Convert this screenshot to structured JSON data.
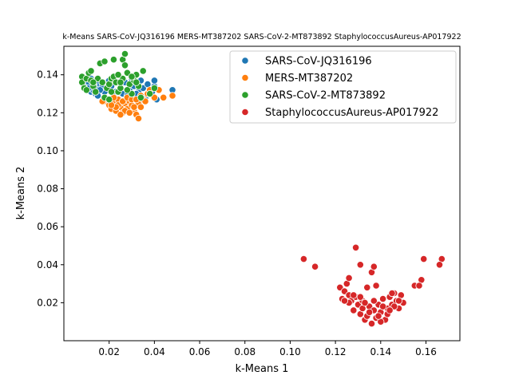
{
  "chart_data": {
    "type": "scatter",
    "title": "k-Means SARS-CoV-JQ316196 MERS-MT387202 SARS-CoV-2-MT873892 StaphylococcusAureus-AP017922",
    "xlabel": "k-Means 1",
    "ylabel": "k-Means 2",
    "xlim": [
      0.0,
      0.175
    ],
    "ylim": [
      0.0,
      0.155
    ],
    "xticks": [
      0.02,
      0.04,
      0.06,
      0.08,
      0.1,
      0.12,
      0.14,
      0.16
    ],
    "yticks": [
      0.02,
      0.04,
      0.06,
      0.08,
      0.1,
      0.12,
      0.14
    ],
    "grid": false,
    "legend_position": "top-right",
    "series": [
      {
        "name": "SARS-CoV-JQ316196",
        "color": "#1f77b4",
        "points": [
          [
            0.01,
            0.134
          ],
          [
            0.012,
            0.131
          ],
          [
            0.014,
            0.133
          ],
          [
            0.016,
            0.135
          ],
          [
            0.011,
            0.136
          ],
          [
            0.013,
            0.132
          ],
          [
            0.015,
            0.137
          ],
          [
            0.017,
            0.134
          ],
          [
            0.018,
            0.131
          ],
          [
            0.02,
            0.133
          ],
          [
            0.012,
            0.138
          ],
          [
            0.014,
            0.13
          ],
          [
            0.016,
            0.132
          ],
          [
            0.019,
            0.136
          ],
          [
            0.021,
            0.134
          ],
          [
            0.023,
            0.131
          ],
          [
            0.025,
            0.133
          ],
          [
            0.027,
            0.136
          ],
          [
            0.029,
            0.132
          ],
          [
            0.031,
            0.134
          ],
          [
            0.033,
            0.131
          ],
          [
            0.035,
            0.133
          ],
          [
            0.037,
            0.135
          ],
          [
            0.04,
            0.134
          ],
          [
            0.041,
            0.127
          ],
          [
            0.048,
            0.132
          ],
          [
            0.034,
            0.137
          ],
          [
            0.03,
            0.138
          ],
          [
            0.026,
            0.13
          ],
          [
            0.022,
            0.129
          ],
          [
            0.018,
            0.127
          ],
          [
            0.015,
            0.129
          ],
          [
            0.013,
            0.134
          ],
          [
            0.024,
            0.136
          ],
          [
            0.028,
            0.129
          ],
          [
            0.032,
            0.13
          ],
          [
            0.036,
            0.128
          ],
          [
            0.039,
            0.131
          ],
          [
            0.011,
            0.133
          ],
          [
            0.02,
            0.137
          ],
          [
            0.04,
            0.137
          ]
        ]
      },
      {
        "name": "MERS-MT387202",
        "color": "#ff7f0e",
        "points": [
          [
            0.018,
            0.126
          ],
          [
            0.02,
            0.124
          ],
          [
            0.021,
            0.122
          ],
          [
            0.022,
            0.125
          ],
          [
            0.023,
            0.121
          ],
          [
            0.024,
            0.127
          ],
          [
            0.025,
            0.123
          ],
          [
            0.026,
            0.12
          ],
          [
            0.027,
            0.125
          ],
          [
            0.028,
            0.122
          ],
          [
            0.029,
            0.126
          ],
          [
            0.03,
            0.124
          ],
          [
            0.031,
            0.121
          ],
          [
            0.032,
            0.119
          ],
          [
            0.033,
            0.125
          ],
          [
            0.034,
            0.123
          ],
          [
            0.035,
            0.127
          ],
          [
            0.033,
            0.117
          ],
          [
            0.037,
            0.13
          ],
          [
            0.04,
            0.128
          ],
          [
            0.042,
            0.132
          ],
          [
            0.044,
            0.128
          ],
          [
            0.048,
            0.129
          ],
          [
            0.038,
            0.132
          ],
          [
            0.022,
            0.128
          ],
          [
            0.024,
            0.124
          ],
          [
            0.026,
            0.126
          ],
          [
            0.028,
            0.128
          ],
          [
            0.03,
            0.127
          ],
          [
            0.031,
            0.123
          ],
          [
            0.027,
            0.121
          ],
          [
            0.025,
            0.119
          ],
          [
            0.023,
            0.123
          ],
          [
            0.029,
            0.12
          ],
          [
            0.032,
            0.127
          ],
          [
            0.034,
            0.129
          ],
          [
            0.036,
            0.126
          ],
          [
            0.021,
            0.124
          ],
          [
            0.019,
            0.127
          ],
          [
            0.017,
            0.126
          ]
        ]
      },
      {
        "name": "SARS-CoV-2-MT873892",
        "color": "#2ca02c",
        "points": [
          [
            0.008,
            0.139
          ],
          [
            0.008,
            0.136
          ],
          [
            0.009,
            0.133
          ],
          [
            0.01,
            0.138
          ],
          [
            0.011,
            0.141
          ],
          [
            0.012,
            0.142
          ],
          [
            0.012,
            0.137
          ],
          [
            0.013,
            0.134
          ],
          [
            0.014,
            0.131
          ],
          [
            0.015,
            0.138
          ],
          [
            0.016,
            0.146
          ],
          [
            0.018,
            0.147
          ],
          [
            0.019,
            0.133
          ],
          [
            0.02,
            0.135
          ],
          [
            0.021,
            0.138
          ],
          [
            0.022,
            0.139
          ],
          [
            0.022,
            0.148
          ],
          [
            0.023,
            0.136
          ],
          [
            0.024,
            0.131
          ],
          [
            0.025,
            0.133
          ],
          [
            0.026,
            0.138
          ],
          [
            0.026,
            0.148
          ],
          [
            0.027,
            0.151
          ],
          [
            0.027,
            0.145
          ],
          [
            0.028,
            0.141
          ],
          [
            0.029,
            0.135
          ],
          [
            0.03,
            0.13
          ],
          [
            0.031,
            0.137
          ],
          [
            0.032,
            0.14
          ],
          [
            0.033,
            0.134
          ],
          [
            0.034,
            0.128
          ],
          [
            0.035,
            0.142
          ],
          [
            0.038,
            0.13
          ],
          [
            0.04,
            0.133
          ],
          [
            0.018,
            0.128
          ],
          [
            0.02,
            0.127
          ],
          [
            0.024,
            0.14
          ],
          [
            0.028,
            0.132
          ],
          [
            0.03,
            0.139
          ],
          [
            0.017,
            0.136
          ],
          [
            0.013,
            0.136
          ],
          [
            0.01,
            0.132
          ],
          [
            0.032,
            0.136
          ],
          [
            0.025,
            0.136
          ],
          [
            0.021,
            0.131
          ]
        ]
      },
      {
        "name": "StaphylococcusAureus-AP017922",
        "color": "#d62728",
        "points": [
          [
            0.106,
            0.043
          ],
          [
            0.111,
            0.039
          ],
          [
            0.129,
            0.049
          ],
          [
            0.131,
            0.04
          ],
          [
            0.136,
            0.036
          ],
          [
            0.137,
            0.039
          ],
          [
            0.159,
            0.043
          ],
          [
            0.167,
            0.043
          ],
          [
            0.166,
            0.04
          ],
          [
            0.158,
            0.032
          ],
          [
            0.155,
            0.029
          ],
          [
            0.157,
            0.029
          ],
          [
            0.122,
            0.028
          ],
          [
            0.123,
            0.022
          ],
          [
            0.124,
            0.026
          ],
          [
            0.125,
            0.03
          ],
          [
            0.126,
            0.033
          ],
          [
            0.126,
            0.024
          ],
          [
            0.127,
            0.021
          ],
          [
            0.128,
            0.016
          ],
          [
            0.129,
            0.023
          ],
          [
            0.13,
            0.019
          ],
          [
            0.131,
            0.014
          ],
          [
            0.132,
            0.021
          ],
          [
            0.133,
            0.011
          ],
          [
            0.134,
            0.013
          ],
          [
            0.135,
            0.018
          ],
          [
            0.136,
            0.009
          ],
          [
            0.137,
            0.016
          ],
          [
            0.138,
            0.012
          ],
          [
            0.139,
            0.019
          ],
          [
            0.14,
            0.015
          ],
          [
            0.141,
            0.022
          ],
          [
            0.142,
            0.011
          ],
          [
            0.143,
            0.017
          ],
          [
            0.144,
            0.023
          ],
          [
            0.145,
            0.019
          ],
          [
            0.146,
            0.025
          ],
          [
            0.147,
            0.021
          ],
          [
            0.148,
            0.017
          ],
          [
            0.149,
            0.024
          ],
          [
            0.15,
            0.02
          ],
          [
            0.134,
            0.028
          ],
          [
            0.138,
            0.029
          ],
          [
            0.128,
            0.024
          ],
          [
            0.126,
            0.02
          ],
          [
            0.132,
            0.017
          ],
          [
            0.14,
            0.01
          ],
          [
            0.143,
            0.014
          ],
          [
            0.146,
            0.018
          ],
          [
            0.135,
            0.015
          ],
          [
            0.137,
            0.021
          ],
          [
            0.141,
            0.018
          ],
          [
            0.144,
            0.016
          ],
          [
            0.139,
            0.013
          ],
          [
            0.133,
            0.02
          ],
          [
            0.131,
            0.023
          ],
          [
            0.124,
            0.021
          ],
          [
            0.148,
            0.021
          ],
          [
            0.145,
            0.025
          ]
        ]
      }
    ]
  }
}
